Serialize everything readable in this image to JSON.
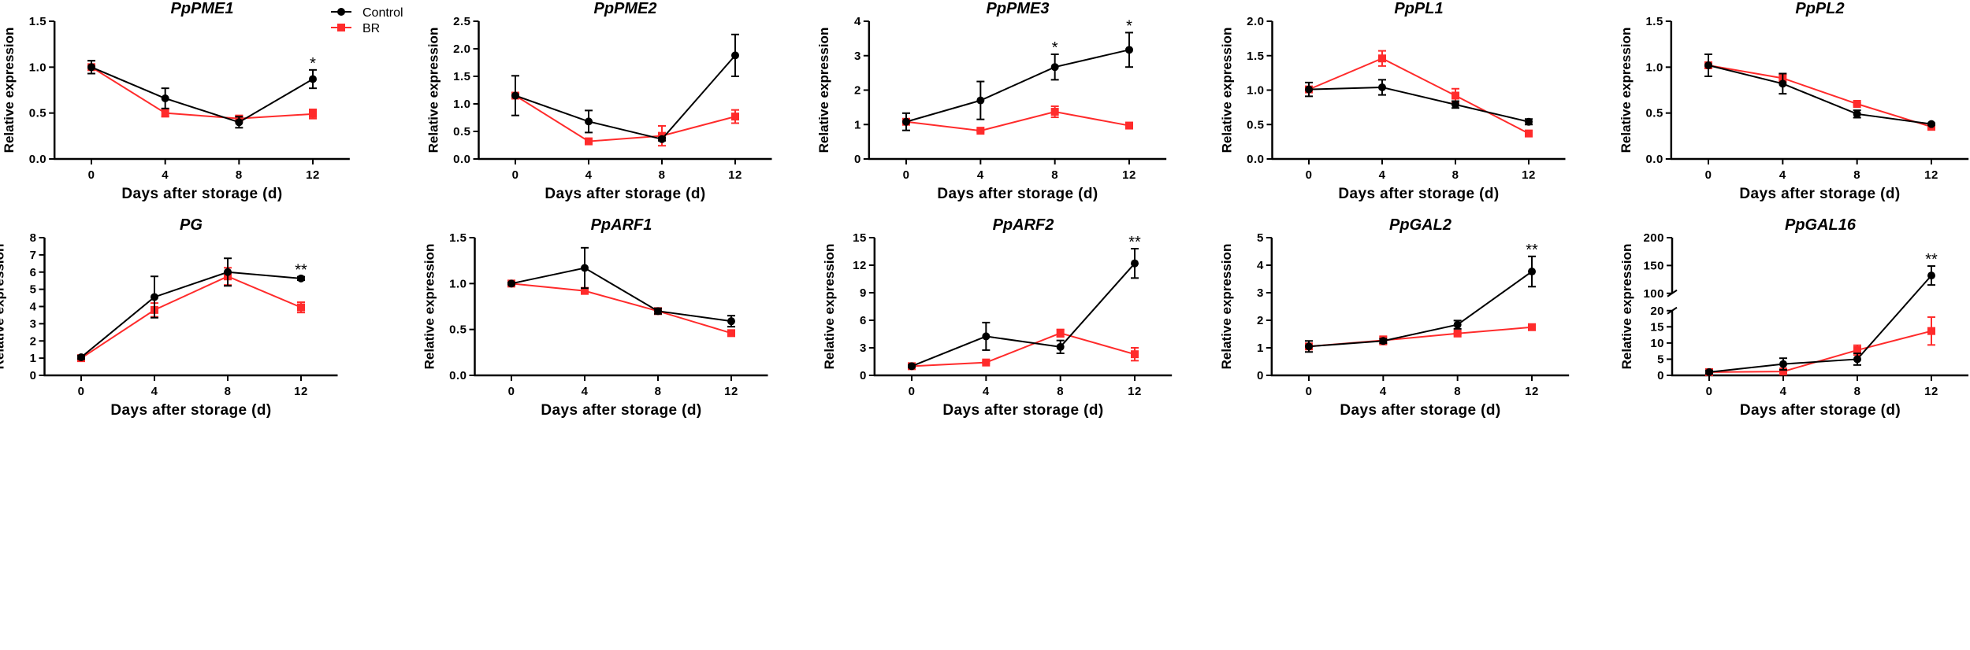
{
  "legend": {
    "control": "Control",
    "br": "BR"
  },
  "colors": {
    "control": "#000000",
    "br": "#ff2b2b"
  },
  "chart_data": [
    {
      "type": "line",
      "title": "PpPME1",
      "xlabel": "Days after storage (d)",
      "ylabel": "Relative expression",
      "x": [
        0,
        4,
        8,
        12
      ],
      "xticks": [
        "0",
        "4",
        "8",
        "12"
      ],
      "xlim": [
        -2,
        14
      ],
      "ylim": [
        0,
        1.5
      ],
      "yticks": [
        "0.0",
        "0.5",
        "1.0",
        "1.5"
      ],
      "ytick_values": [
        0,
        0.5,
        1.0,
        1.5
      ],
      "series": [
        {
          "name": "Control",
          "values": [
            1.0,
            0.66,
            0.4,
            0.87
          ],
          "errors": [
            0.07,
            0.11,
            0.06,
            0.1
          ]
        },
        {
          "name": "BR",
          "values": [
            1.0,
            0.5,
            0.44,
            0.49
          ],
          "errors": [
            0.03,
            0.04,
            0.03,
            0.05
          ]
        }
      ],
      "significance": [
        "",
        "",
        "",
        "*"
      ]
    },
    {
      "type": "line",
      "title": "PpPME2",
      "xlabel": "Days after storage (d)",
      "ylabel": "Relative expression",
      "x": [
        0,
        4,
        8,
        12
      ],
      "xticks": [
        "0",
        "4",
        "8",
        "12"
      ],
      "xlim": [
        -2,
        14
      ],
      "ylim": [
        0,
        2.5
      ],
      "yticks": [
        "0.0",
        "0.5",
        "1.0",
        "1.5",
        "2.0",
        "2.5"
      ],
      "ytick_values": [
        0,
        0.5,
        1.0,
        1.5,
        2.0,
        2.5
      ],
      "series": [
        {
          "name": "Control",
          "values": [
            1.15,
            0.68,
            0.36,
            1.88
          ],
          "errors": [
            0.36,
            0.2,
            0.03,
            0.38
          ]
        },
        {
          "name": "BR",
          "values": [
            1.15,
            0.32,
            0.42,
            0.77
          ],
          "errors": [
            0.03,
            0.04,
            0.18,
            0.12
          ]
        }
      ],
      "significance": [
        "",
        "",
        "",
        ""
      ]
    },
    {
      "type": "line",
      "title": "PpPME3",
      "xlabel": "Days after storage (d)",
      "ylabel": "Relative expression",
      "x": [
        0,
        4,
        8,
        12
      ],
      "xticks": [
        "0",
        "4",
        "8",
        "12"
      ],
      "xlim": [
        -2,
        14
      ],
      "ylim": [
        0,
        4
      ],
      "yticks": [
        "0",
        "1",
        "2",
        "3",
        "4"
      ],
      "ytick_values": [
        0,
        1,
        2,
        3,
        4
      ],
      "series": [
        {
          "name": "Control",
          "values": [
            1.08,
            1.7,
            2.67,
            3.17
          ],
          "errors": [
            0.25,
            0.55,
            0.37,
            0.5
          ]
        },
        {
          "name": "BR",
          "values": [
            1.08,
            0.82,
            1.37,
            0.97
          ],
          "errors": [
            0.05,
            0.03,
            0.16,
            0.03
          ]
        }
      ],
      "significance": [
        "",
        "",
        "*",
        "*"
      ]
    },
    {
      "type": "line",
      "title": "PpPL1",
      "xlabel": "Days after storage (d)",
      "ylabel": "Relative expression",
      "x": [
        0,
        4,
        8,
        12
      ],
      "xticks": [
        "0",
        "4",
        "8",
        "12"
      ],
      "xlim": [
        -2,
        14
      ],
      "ylim": [
        0,
        2.0
      ],
      "yticks": [
        "0.0",
        "0.5",
        "1.0",
        "1.5",
        "2.0"
      ],
      "ytick_values": [
        0,
        0.5,
        1.0,
        1.5,
        2.0
      ],
      "series": [
        {
          "name": "Control",
          "values": [
            1.01,
            1.04,
            0.79,
            0.54
          ],
          "errors": [
            0.1,
            0.11,
            0.05,
            0.04
          ]
        },
        {
          "name": "BR",
          "values": [
            1.01,
            1.46,
            0.92,
            0.37
          ],
          "errors": [
            0.02,
            0.11,
            0.1,
            0.03
          ]
        }
      ],
      "significance": [
        "",
        "",
        "",
        ""
      ]
    },
    {
      "type": "line",
      "title": "PpPL2",
      "xlabel": "Days after storage (d)",
      "ylabel": "Relative expression",
      "x": [
        0,
        4,
        8,
        12
      ],
      "xticks": [
        "0",
        "4",
        "8",
        "12"
      ],
      "xlim": [
        -2,
        14
      ],
      "ylim": [
        0,
        1.5
      ],
      "yticks": [
        "0.0",
        "0.5",
        "1.0",
        "1.5"
      ],
      "ytick_values": [
        0,
        0.5,
        1.0,
        1.5
      ],
      "series": [
        {
          "name": "Control",
          "values": [
            1.02,
            0.82,
            0.49,
            0.38
          ],
          "errors": [
            0.12,
            0.11,
            0.04,
            0.01
          ]
        },
        {
          "name": "BR",
          "values": [
            1.02,
            0.88,
            0.6,
            0.35
          ],
          "errors": [
            0.02,
            0.04,
            0.01,
            0.02
          ]
        }
      ],
      "significance": [
        "",
        "",
        "",
        ""
      ]
    },
    {
      "type": "line",
      "title": "PG",
      "xlabel": "Days after storage (d)",
      "ylabel": "Relative expression",
      "x": [
        0,
        4,
        8,
        12
      ],
      "xticks": [
        "0",
        "4",
        "8",
        "12"
      ],
      "xlim": [
        -2,
        14
      ],
      "ylim": [
        0,
        8
      ],
      "yticks": [
        "0",
        "1",
        "2",
        "3",
        "4",
        "5",
        "6",
        "7",
        "8"
      ],
      "ytick_values": [
        0,
        1,
        2,
        3,
        4,
        5,
        6,
        7,
        8
      ],
      "series": [
        {
          "name": "Control",
          "values": [
            1.05,
            4.55,
            6.0,
            5.63
          ],
          "errors": [
            0.1,
            1.2,
            0.8,
            0.1
          ]
        },
        {
          "name": "BR",
          "values": [
            1.0,
            3.8,
            5.75,
            3.95
          ],
          "errors": [
            0.1,
            0.4,
            0.5,
            0.3
          ]
        }
      ],
      "significance": [
        "",
        "",
        "",
        "**"
      ]
    },
    {
      "type": "line",
      "title": "PpARF1",
      "xlabel": "Days after storage (d)",
      "ylabel": "Relative expression",
      "x": [
        0,
        4,
        8,
        12
      ],
      "xticks": [
        "0",
        "4",
        "8",
        "12"
      ],
      "xlim": [
        -2,
        14
      ],
      "ylim": [
        0,
        1.5
      ],
      "yticks": [
        "0.0",
        "0.5",
        "1.0",
        "1.5"
      ],
      "ytick_values": [
        0,
        0.5,
        1.0,
        1.5
      ],
      "series": [
        {
          "name": "Control",
          "values": [
            1.0,
            1.17,
            0.7,
            0.59
          ],
          "errors": [
            0.01,
            0.22,
            0.03,
            0.06
          ]
        },
        {
          "name": "BR",
          "values": [
            1.0,
            0.92,
            0.7,
            0.46
          ],
          "errors": [
            0.01,
            0.01,
            0.02,
            0.02
          ]
        }
      ],
      "significance": [
        "",
        "",
        "",
        ""
      ]
    },
    {
      "type": "line",
      "title": "PpARF2",
      "xlabel": "Days after storage (d)",
      "ylabel": "Relative expression",
      "x": [
        0,
        4,
        8,
        12
      ],
      "xticks": [
        "0",
        "4",
        "8",
        "12"
      ],
      "xlim": [
        -2,
        14
      ],
      "ylim": [
        0,
        15
      ],
      "yticks": [
        "0",
        "3",
        "6",
        "9",
        "12",
        "15"
      ],
      "ytick_values": [
        0,
        3,
        6,
        9,
        12,
        15
      ],
      "series": [
        {
          "name": "Control",
          "values": [
            1.0,
            4.25,
            3.1,
            12.2
          ],
          "errors": [
            0.1,
            1.5,
            0.7,
            1.6
          ]
        },
        {
          "name": "BR",
          "values": [
            1.0,
            1.4,
            4.6,
            2.3
          ],
          "errors": [
            0.05,
            0.1,
            0.4,
            0.7
          ]
        }
      ],
      "significance": [
        "",
        "",
        "",
        "**"
      ]
    },
    {
      "type": "line",
      "title": "PpGAL2",
      "xlabel": "Days after storage (d)",
      "ylabel": "Relative expression",
      "x": [
        0,
        4,
        8,
        12
      ],
      "xticks": [
        "0",
        "4",
        "8",
        "12"
      ],
      "xlim": [
        -2,
        14
      ],
      "ylim": [
        0,
        5
      ],
      "yticks": [
        "0",
        "1",
        "2",
        "3",
        "4",
        "5"
      ],
      "ytick_values": [
        0,
        1,
        2,
        3,
        4,
        5
      ],
      "series": [
        {
          "name": "Control",
          "values": [
            1.05,
            1.25,
            1.84,
            3.77
          ],
          "errors": [
            0.2,
            0.08,
            0.15,
            0.55
          ]
        },
        {
          "name": "BR",
          "values": [
            1.05,
            1.27,
            1.52,
            1.75
          ],
          "errors": [
            0.1,
            0.15,
            0.03,
            0.05
          ]
        }
      ],
      "significance": [
        "",
        "",
        "",
        "**"
      ]
    },
    {
      "type": "line",
      "title": "PpGAL16",
      "xlabel": "Days after storage (d)",
      "ylabel": "Relative expression",
      "x": [
        0,
        4,
        8,
        12
      ],
      "xticks": [
        "0",
        "4",
        "8",
        "12"
      ],
      "xlim": [
        -2,
        14
      ],
      "ylim": [
        0,
        200
      ],
      "axis_break": [
        20,
        100
      ],
      "yticks": [
        "0",
        "5",
        "10",
        "15",
        "20",
        "100",
        "150",
        "200"
      ],
      "ytick_values": [
        0,
        5,
        10,
        15,
        20,
        100,
        150,
        200
      ],
      "series": [
        {
          "name": "Control",
          "values": [
            1.0,
            3.5,
            5.0,
            132
          ],
          "errors": [
            0.5,
            1.8,
            1.8,
            17
          ]
        },
        {
          "name": "BR",
          "values": [
            1.0,
            1.2,
            7.8,
            13.7
          ],
          "errors": [
            0.2,
            0.2,
            1.5,
            4.3
          ]
        }
      ],
      "significance": [
        "",
        "",
        "",
        "**"
      ]
    }
  ]
}
